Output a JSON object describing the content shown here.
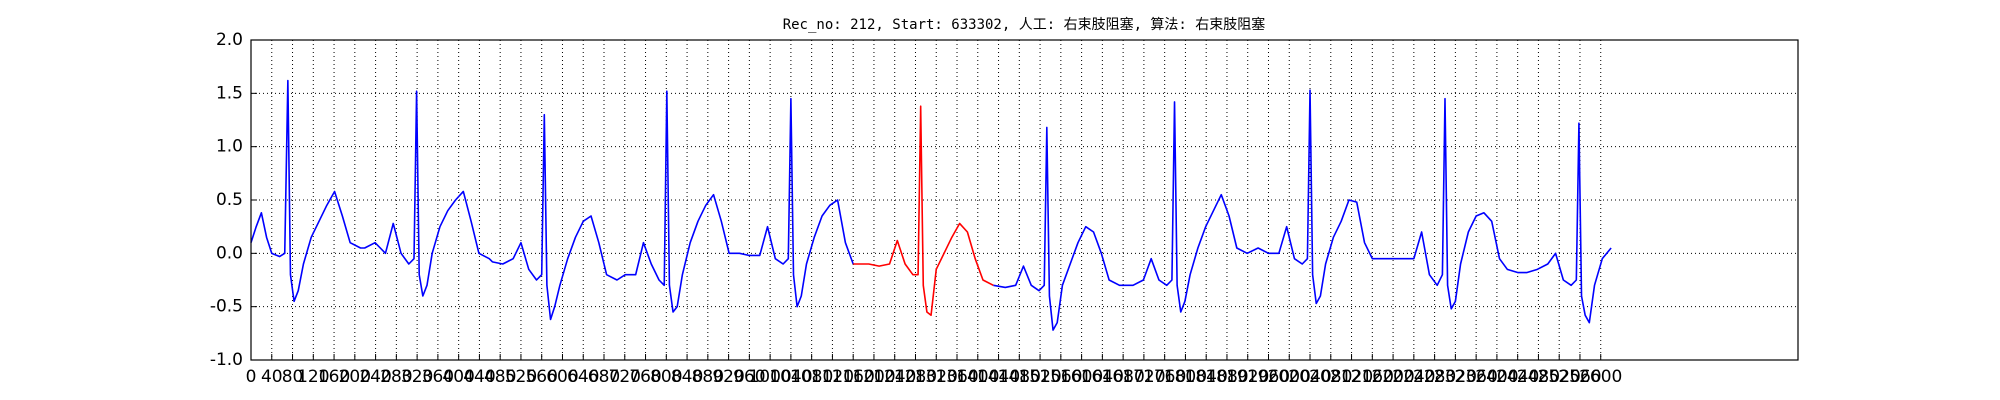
{
  "chart_data": {
    "type": "line",
    "title": "Rec_no: 212, Start: 633302, 人工: 右束肢阻塞, 算法: 右束肢阻塞",
    "xlim": [
      0,
      2980
    ],
    "ylim": [
      -1.0,
      2.0
    ],
    "yticks": [
      {
        "value": -1.0,
        "label": "-1.0"
      },
      {
        "value": -0.5,
        "label": "-0.5"
      },
      {
        "value": 0.0,
        "label": "0.0"
      },
      {
        "value": 0.5,
        "label": "0.5"
      },
      {
        "value": 1.0,
        "label": "1.0"
      },
      {
        "value": 1.5,
        "label": "1.5"
      },
      {
        "value": 2.0,
        "label": "2.0"
      }
    ],
    "xticks": [
      0,
      40,
      80,
      120,
      160,
      200,
      240,
      280,
      320,
      360,
      400,
      440,
      480,
      520,
      560,
      600,
      640,
      680,
      720,
      760,
      800,
      840,
      880,
      920,
      960,
      1000,
      1040,
      1080,
      1120,
      1160,
      1200,
      1240,
      1280,
      1320,
      1360,
      1400,
      1440,
      1480,
      1520,
      1560,
      1600,
      1640,
      1680,
      1720,
      1760,
      1800,
      1840,
      1880,
      1920,
      1960,
      2000,
      2040,
      2080,
      2120,
      2160,
      2200,
      2240,
      2280,
      2320,
      2360,
      2400,
      2440,
      2480,
      2520,
      2560,
      2600
    ],
    "grid": true,
    "series": [
      {
        "color": "#0000ff",
        "x": [
          0,
          10,
          20,
          30,
          40,
          55,
          65,
          71,
          76,
          83,
          91,
          101,
          116,
          131,
          146,
          161,
          176,
          191,
          211,
          219,
          239,
          259,
          274,
          289,
          304,
          314,
          319,
          324,
          331,
          339,
          349,
          364,
          379,
          394,
          409,
          424,
          439,
          459,
          465,
          485,
          505,
          520,
          535,
          550,
          560,
          565,
          570,
          577,
          585,
          595,
          610,
          625,
          640,
          655,
          670,
          685,
          705,
          721,
          741,
          756,
          771,
          786,
          796,
          801,
          806,
          813,
          821,
          831,
          846,
          861,
          876,
          891,
          906,
          921,
          941,
          960,
          980,
          995,
          1010,
          1025,
          1035,
          1040,
          1045,
          1052,
          1060,
          1070,
          1085,
          1100,
          1115,
          1130,
          1145,
          1160,
          1300,
          1430,
          1453,
          1473,
          1488,
          1503,
          1518,
          1528,
          1533,
          1538,
          1545,
          1553,
          1563,
          1578,
          1593,
          1608,
          1623,
          1638,
          1653,
          1673,
          1699,
          1719,
          1734,
          1749,
          1764,
          1774,
          1779,
          1784,
          1791,
          1799,
          1809,
          1824,
          1839,
          1854,
          1869,
          1884,
          1899,
          1919,
          1940,
          1960,
          1980,
          1995,
          2010,
          2025,
          2035,
          2040,
          2045,
          2052,
          2060,
          2070,
          2085,
          2100,
          2115,
          2130,
          2145,
          2160,
          2180,
          2200,
          2220,
          2240,
          2255,
          2270,
          2285,
          2295,
          2300,
          2305,
          2312,
          2320,
          2330,
          2345,
          2360,
          2375,
          2390,
          2405,
          2420,
          2440,
          2458,
          2478,
          2498,
          2513,
          2528,
          2543,
          2553,
          2558,
          2563,
          2570,
          2578,
          2588,
          2603,
          2620
        ],
        "values": [
          0.1,
          0.25,
          0.38,
          0.15,
          0.0,
          -0.03,
          0.0,
          1.62,
          -0.2,
          -0.45,
          -0.35,
          -0.1,
          0.15,
          0.3,
          0.45,
          0.58,
          0.35,
          0.1,
          0.05,
          0.05,
          0.1,
          0.0,
          0.28,
          0.0,
          -0.1,
          -0.05,
          1.52,
          -0.2,
          -0.4,
          -0.3,
          0.0,
          0.25,
          0.4,
          0.5,
          0.58,
          0.3,
          0.0,
          -0.05,
          -0.08,
          -0.1,
          -0.05,
          0.1,
          -0.15,
          -0.25,
          -0.2,
          1.3,
          -0.3,
          -0.62,
          -0.5,
          -0.3,
          -0.05,
          0.15,
          0.3,
          0.35,
          0.1,
          -0.2,
          -0.25,
          -0.2,
          -0.2,
          0.1,
          -0.1,
          -0.25,
          -0.3,
          1.52,
          -0.3,
          -0.55,
          -0.5,
          -0.2,
          0.1,
          0.3,
          0.45,
          0.55,
          0.3,
          0.0,
          0.0,
          -0.02,
          -0.02,
          0.25,
          -0.05,
          -0.1,
          -0.05,
          1.45,
          -0.2,
          -0.5,
          -0.4,
          -0.1,
          0.15,
          0.35,
          0.45,
          0.5,
          0.1,
          -0.1,
          null,
          -0.3,
          -0.32,
          -0.3,
          -0.12,
          -0.3,
          -0.35,
          -0.3,
          1.18,
          -0.4,
          -0.72,
          -0.65,
          -0.3,
          -0.1,
          0.1,
          0.25,
          0.2,
          0.0,
          -0.25,
          -0.3,
          -0.3,
          -0.25,
          -0.05,
          -0.25,
          -0.3,
          -0.25,
          1.42,
          -0.3,
          -0.55,
          -0.45,
          -0.2,
          0.05,
          0.25,
          0.4,
          0.55,
          0.35,
          0.05,
          0.0,
          0.05,
          0.0,
          0.0,
          0.25,
          -0.05,
          -0.1,
          -0.05,
          1.53,
          -0.2,
          -0.47,
          -0.4,
          -0.1,
          0.15,
          0.3,
          0.5,
          0.48,
          0.1,
          -0.05,
          -0.05,
          -0.05,
          -0.05,
          -0.05,
          0.2,
          -0.2,
          -0.3,
          -0.2,
          1.45,
          -0.3,
          -0.52,
          -0.45,
          -0.1,
          0.2,
          0.35,
          0.38,
          0.3,
          -0.05,
          -0.15,
          -0.18,
          -0.18,
          -0.15,
          -0.1,
          0.0,
          -0.25,
          -0.3,
          -0.25,
          1.22,
          -0.4,
          -0.58,
          -0.65,
          -0.3,
          -0.05,
          0.05
        ]
      },
      {
        "color": "#ff0000",
        "x": [
          1160,
          1180,
          1190,
          1210,
          1230,
          1245,
          1260,
          1275,
          1285,
          1290,
          1295,
          1302,
          1310,
          1320,
          1335,
          1350,
          1365,
          1380,
          1395,
          1410,
          1430
        ],
        "values": [
          -0.1,
          -0.1,
          -0.1,
          -0.12,
          -0.1,
          0.12,
          -0.1,
          -0.2,
          -0.2,
          1.38,
          -0.3,
          -0.55,
          -0.58,
          -0.15,
          0.0,
          0.15,
          0.28,
          0.2,
          -0.05,
          -0.25,
          -0.3
        ]
      }
    ]
  }
}
